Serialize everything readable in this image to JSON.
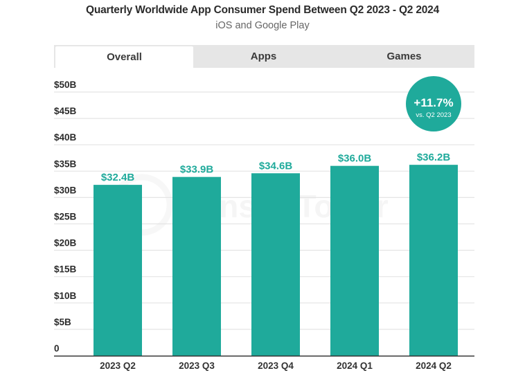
{
  "header": {
    "title": "Quarterly Worldwide App Consumer Spend Between Q2 2023 - Q2 2024",
    "subtitle": "iOS and Google Play"
  },
  "tabs": [
    {
      "label": "Overall",
      "active": true
    },
    {
      "label": "Apps",
      "active": false
    },
    {
      "label": "Games",
      "active": false
    }
  ],
  "badge": {
    "value": "+11.7%",
    "caption": "vs. Q2 2023"
  },
  "watermark": "Sensor Tower",
  "colors": {
    "bar": "#1faa9b",
    "label": "#1faa9b",
    "badge": "#1faa9b",
    "grid": "#e4e4e4",
    "axis": "#333333"
  },
  "chart_data": {
    "type": "bar",
    "title": "Quarterly Worldwide App Consumer Spend Between Q2 2023 - Q2 2024",
    "subtitle": "iOS and Google Play",
    "xlabel": "",
    "ylabel": "",
    "categories": [
      "2023 Q2",
      "2023 Q3",
      "2023 Q4",
      "2024 Q1",
      "2024 Q2"
    ],
    "values": [
      32.4,
      33.9,
      34.6,
      36.0,
      36.2
    ],
    "data_labels": [
      "$32.4B",
      "$33.9B",
      "$34.6B",
      "$36.0B",
      "$36.2B"
    ],
    "unit": "USD billions",
    "ylim": [
      0,
      50
    ],
    "yticks": [
      0,
      5,
      10,
      15,
      20,
      25,
      30,
      35,
      40,
      45,
      50
    ],
    "ytick_labels": [
      "0",
      "$5B",
      "$10B",
      "$15B",
      "$20B",
      "$25B",
      "$30B",
      "$35B",
      "$40B",
      "$45B",
      "$50B"
    ],
    "grid": true,
    "legend": "none",
    "annotation": "+11.7% vs. Q2 2023"
  }
}
